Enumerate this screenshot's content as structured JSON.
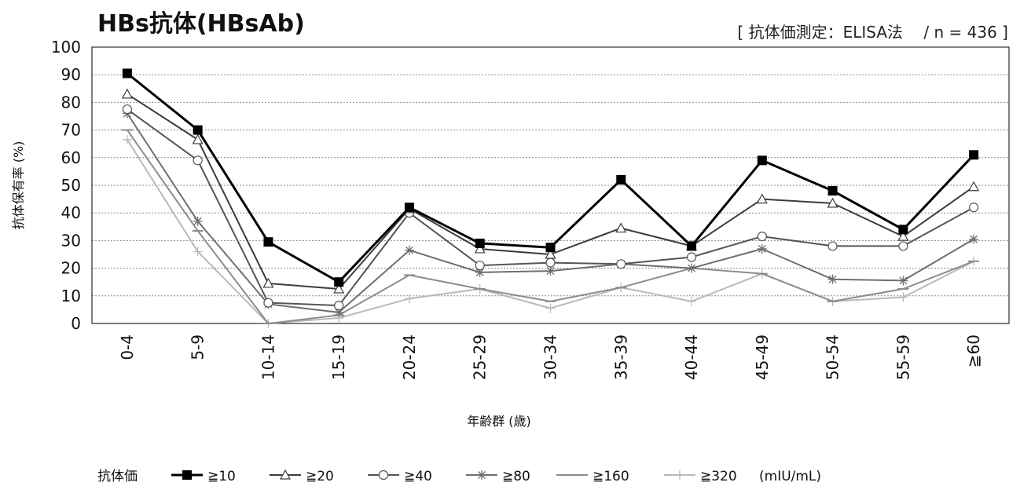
{
  "chart_data": {
    "type": "line",
    "title": "HBs抗体(HBsAb)",
    "subtitle": "[ 抗体価測定：ELISA法　 / n = 436 ]",
    "xlabel": "年齢群 (歳)",
    "ylabel": "抗体保有率 (%)",
    "ylim": [
      0,
      100
    ],
    "yticks": [
      0,
      10,
      20,
      30,
      40,
      50,
      60,
      70,
      80,
      90,
      100
    ],
    "grid": true,
    "legend_title": "抗体価",
    "legend_unit": "(mIU/mL)",
    "legend_position": "bottom",
    "categories": [
      "0-4",
      "5-9",
      "10-14",
      "15-19",
      "20-24",
      "25-29",
      "30-34",
      "35-39",
      "40-44",
      "45-49",
      "50-54",
      "55-59",
      "≧60"
    ],
    "series": [
      {
        "name": "≧10",
        "color": "#000000",
        "marker": "filled-square",
        "values": [
          90.5,
          70,
          29.5,
          15,
          42,
          29,
          27.5,
          52,
          28,
          59,
          48,
          34,
          61
        ]
      },
      {
        "name": "≧20",
        "color": "#3c3c3c",
        "marker": "triangle",
        "values": [
          83,
          66.5,
          14.5,
          12.5,
          41.5,
          27,
          25,
          34.5,
          28,
          45,
          43.5,
          31.5,
          49.5
        ]
      },
      {
        "name": "≧40",
        "color": "#555555",
        "marker": "circle",
        "values": [
          77.5,
          59,
          7.5,
          6.5,
          40,
          21,
          22,
          21.5,
          24,
          31.5,
          28,
          28,
          42
        ]
      },
      {
        "name": "≧80",
        "color": "#6e6e6e",
        "marker": "star",
        "values": [
          76,
          37,
          7,
          4,
          26.5,
          18.5,
          19,
          21.5,
          20,
          27,
          16,
          15.5,
          30.5
        ]
      },
      {
        "name": "≧160",
        "color": "#8c8c8c",
        "marker": "dash",
        "values": [
          70,
          33.5,
          0,
          3,
          17.5,
          12.5,
          8,
          13,
          20,
          18,
          8,
          12.5,
          22.5
        ]
      },
      {
        "name": "≧320",
        "color": "#b9b9b9",
        "marker": "plus",
        "values": [
          66.5,
          26,
          0,
          2,
          9,
          12.5,
          5.5,
          13,
          8,
          18,
          8,
          9.5,
          22.5
        ]
      }
    ]
  }
}
